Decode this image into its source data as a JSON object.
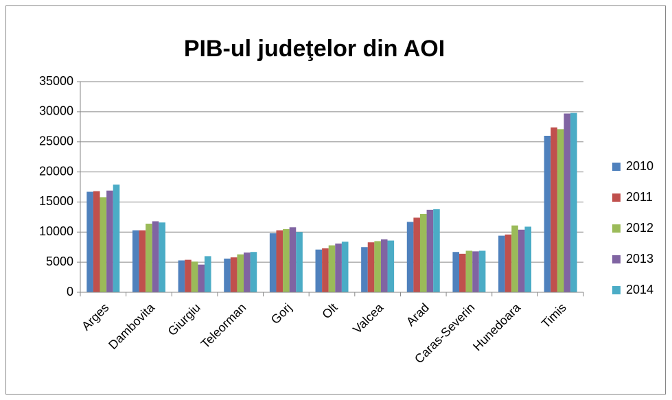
{
  "chart_data": {
    "type": "bar",
    "title": "PIB-ul judeţelor din AOI",
    "categories": [
      "Arges",
      "Dambovita",
      "Giurgiu",
      "Teleorman",
      "Gorj",
      "Olt",
      "Valcea",
      "Arad",
      "Caras-Severin",
      "Hunedoara",
      "Timis"
    ],
    "series": [
      {
        "name": "2010",
        "color": "#4f81bd",
        "values": [
          16700,
          10300,
          5300,
          5600,
          9800,
          7100,
          7500,
          11700,
          6700,
          9400,
          26000
        ]
      },
      {
        "name": "2011",
        "color": "#c0504d",
        "values": [
          16800,
          10300,
          5400,
          5800,
          10300,
          7300,
          8300,
          12400,
          6400,
          9600,
          27400
        ]
      },
      {
        "name": "2012",
        "color": "#9bbb59",
        "values": [
          15800,
          11400,
          5100,
          6300,
          10500,
          7800,
          8500,
          13000,
          6900,
          11100,
          27100
        ]
      },
      {
        "name": "2013",
        "color": "#8064a2",
        "values": [
          16900,
          11800,
          4600,
          6600,
          10800,
          8100,
          8800,
          13700,
          6800,
          10400,
          29700
        ]
      },
      {
        "name": "2014",
        "color": "#4bacc6",
        "values": [
          17900,
          11600,
          6000,
          6700,
          10000,
          8400,
          8600,
          13800,
          6900,
          10900,
          29800
        ]
      }
    ],
    "ylim": [
      0,
      35000
    ],
    "yticks": [
      0,
      5000,
      10000,
      15000,
      20000,
      25000,
      30000,
      35000
    ],
    "grid": true,
    "legend": "right"
  }
}
